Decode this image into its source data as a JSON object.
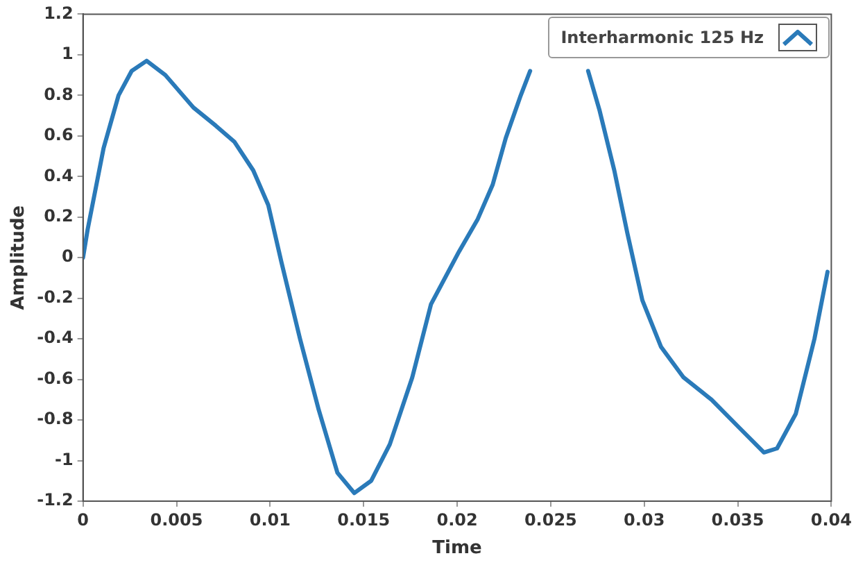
{
  "chart_data": {
    "type": "line",
    "xlabel": "Time",
    "ylabel": "Amplitude",
    "xlim": [
      0,
      0.04
    ],
    "ylim": [
      -1.2,
      1.2
    ],
    "xticks": [
      0,
      0.005,
      0.01,
      0.015,
      0.02,
      0.025,
      0.03,
      0.035,
      0.04
    ],
    "yticks": [
      -1.2,
      -1,
      -0.8,
      -0.6,
      -0.4,
      -0.2,
      0,
      0.2,
      0.4,
      0.6,
      0.8,
      1,
      1.2
    ],
    "grid": false,
    "legend": "top right",
    "marker": "none",
    "line_style": "solid",
    "series": [
      {
        "name": "Interharmonic 125 Hz",
        "color": "#2a7ab9",
        "x": [
          0,
          0.00025,
          0.0011,
          0.0019,
          0.0026,
          0.0034,
          0.0044,
          0.0059,
          0.0071,
          0.0081,
          0.0091,
          0.0099,
          0.0106,
          0.0116,
          0.0126,
          0.0136,
          0.0145,
          0.0154,
          0.0164,
          0.0176,
          0.0186,
          0.0201,
          0.0211,
          0.0219,
          0.0226,
          0.0234,
          0.0239,
          0.0255,
          0.027,
          0.0276,
          0.0284,
          0.0291,
          0.0299,
          0.0309,
          0.0321,
          0.0336,
          0.0351,
          0.0364,
          0.0371,
          0.0381,
          0.0391,
          0.0398
        ],
        "values": [
          0,
          0.14,
          0.54,
          0.8,
          0.92,
          0.97,
          0.9,
          0.74,
          0.65,
          0.57,
          0.43,
          0.26,
          -0.02,
          -0.4,
          -0.75,
          -1.06,
          -1.16,
          -1.1,
          -0.92,
          -0.59,
          -0.23,
          0.03,
          0.19,
          0.36,
          0.59,
          0.8,
          0.92,
          null,
          0.92,
          0.73,
          0.43,
          0.12,
          -0.21,
          -0.44,
          -0.59,
          -0.7,
          -0.84,
          -0.96,
          -0.94,
          -0.77,
          -0.4,
          -0.07
        ]
      }
    ]
  }
}
